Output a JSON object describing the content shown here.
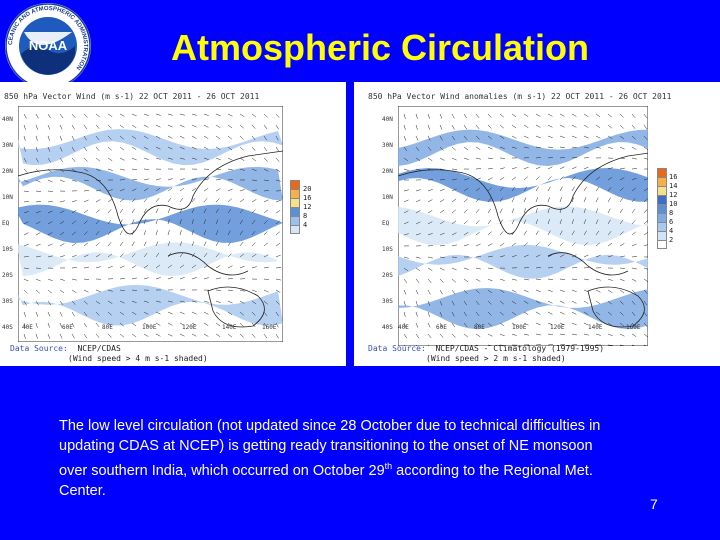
{
  "logo": {
    "text": "NOAA",
    "ring_text": "NATIONAL OCEANIC AND ATMOSPHERIC ADMINISTRATION",
    "dept_text": "U.S. DEPARTMENT OF COMMERCE"
  },
  "title": "Atmospheric Circulation",
  "maps": {
    "left": {
      "title": "850 hPa Vector Wind (m s-1) 22 OCT 2011 - 26 OCT 2011",
      "source_key": "Data Source:",
      "source_value": "NCEP/CDAS",
      "note": "(Wind speed > 4 m s-1 shaded)",
      "lat_labels": [
        "40N",
        "30N",
        "20N",
        "10N",
        "EQ",
        "10S",
        "20S",
        "30S",
        "40S"
      ],
      "lon_labels": [
        "40E",
        "60E",
        "80E",
        "100E",
        "120E",
        "140E",
        "160E"
      ],
      "colorbar_labels": [
        "20",
        "16",
        "12",
        "8",
        "4"
      ],
      "colorbar_colors": [
        "#e66a1a",
        "#f4b04a",
        "#f7e08a",
        "#5b8fd6",
        "#9cc0ec",
        "#d6e6f7"
      ]
    },
    "right": {
      "title": "850 hPa Vector Wind anomalies (m s-1) 22 OCT 2011 - 26 OCT 2011",
      "source_key": "Data Source:",
      "source_value": "NCEP/CDAS - Climatology (1979-1995)",
      "note": "(Wind speed > 2 m s-1 shaded)",
      "lat_labels": [
        "40N",
        "30N",
        "20N",
        "10N",
        "EQ",
        "10S",
        "20S",
        "30S",
        "40S"
      ],
      "lon_labels": [
        "40E",
        "60E",
        "80E",
        "100E",
        "120E",
        "140E",
        "160E"
      ],
      "colorbar_labels": [
        "16",
        "14",
        "12",
        "10",
        "8",
        "6",
        "4",
        "2"
      ],
      "colorbar_colors": [
        "#e66a1a",
        "#f4b04a",
        "#f7e08a",
        "#3e6fc4",
        "#5b8fd6",
        "#7faae2",
        "#a9c8ef",
        "#d3e3f6",
        "#ffffff"
      ]
    }
  },
  "caption": {
    "main": "The low level circulation (not updated since 28 October due to technical difficulties in updating CDAS at NCEP) is getting ready transitioning to the onset of NE monsoon over southern India, which occurred on October 29",
    "sup": "th",
    "tail": " according to the Regional Met. Center."
  },
  "page_number": "7"
}
